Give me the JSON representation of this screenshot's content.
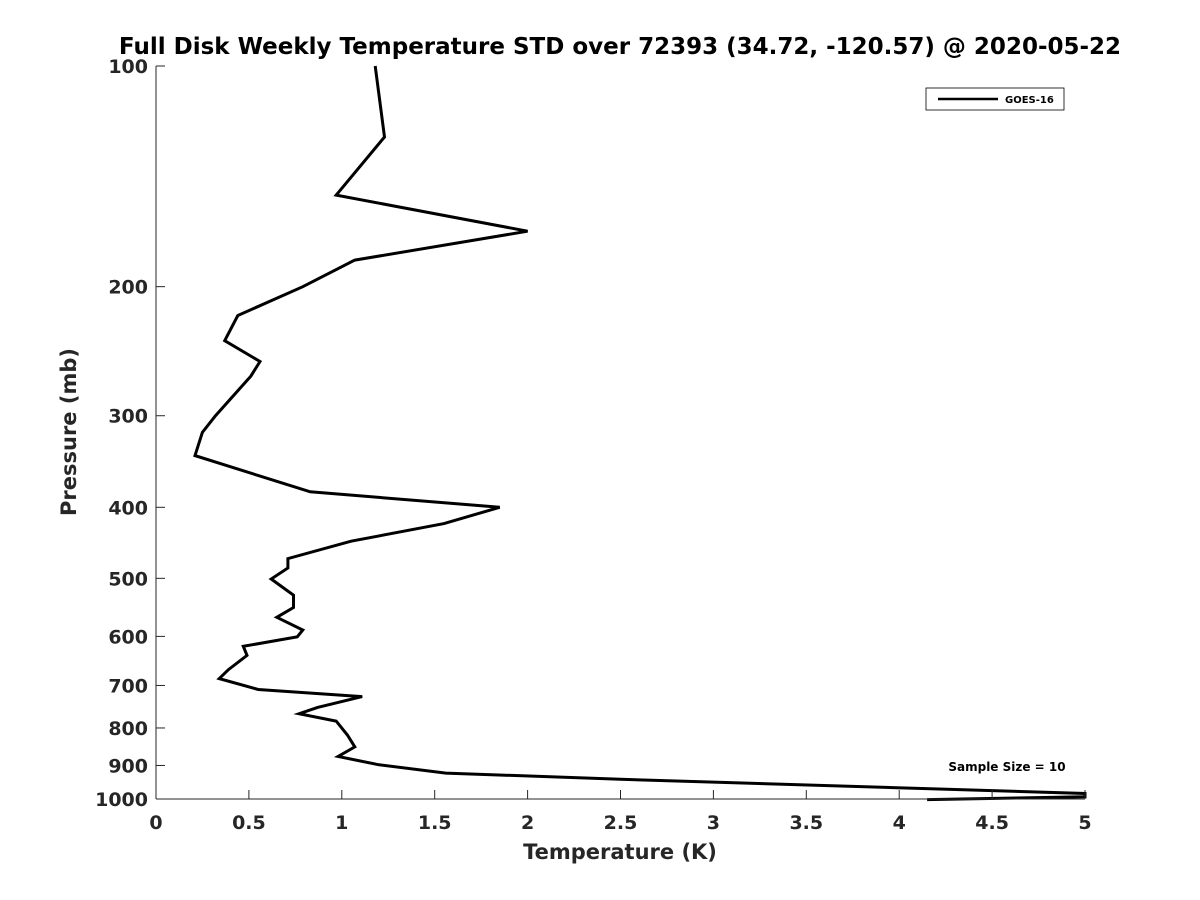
{
  "chart_data": {
    "type": "line",
    "title": "Full Disk Weekly Temperature STD over 72393 (34.72, -120.57) @ 2020-05-22",
    "xlabel": "Temperature (K)",
    "ylabel": "Pressure (mb)",
    "xlim": [
      0,
      5
    ],
    "ylim": [
      100,
      1000
    ],
    "y_scale": "log",
    "y_reversed": true,
    "grid": false,
    "x_ticks": [
      0,
      0.5,
      1,
      1.5,
      2,
      2.5,
      3,
      3.5,
      4,
      4.5,
      5
    ],
    "x_tick_labels": [
      "0",
      "0.5",
      "1",
      "1.5",
      "2",
      "2.5",
      "3",
      "3.5",
      "4",
      "4.5",
      "5"
    ],
    "y_ticks": [
      100,
      200,
      300,
      400,
      500,
      600,
      700,
      800,
      900,
      1000
    ],
    "y_tick_labels": [
      "100",
      "200",
      "300",
      "400",
      "500",
      "600",
      "700",
      "800",
      "900",
      "1000"
    ],
    "legend": {
      "placement": "top-right",
      "entries": [
        "GOES-16"
      ]
    },
    "annotation": "Sample Size = 10",
    "series": [
      {
        "name": "GOES-16",
        "color": "#000000",
        "points": [
          [
            1.18,
            100
          ],
          [
            1.23,
            125
          ],
          [
            0.97,
            150
          ],
          [
            2.0,
            168
          ],
          [
            1.07,
            184
          ],
          [
            0.79,
            200
          ],
          [
            0.44,
            219
          ],
          [
            0.37,
            237
          ],
          [
            0.56,
            253
          ],
          [
            0.51,
            265
          ],
          [
            0.32,
            300
          ],
          [
            0.25,
            316
          ],
          [
            0.21,
            340
          ],
          [
            0.83,
            381
          ],
          [
            1.85,
            400
          ],
          [
            1.55,
            421
          ],
          [
            1.05,
            445
          ],
          [
            0.71,
            470
          ],
          [
            0.71,
            484
          ],
          [
            0.62,
            501
          ],
          [
            0.74,
            527
          ],
          [
            0.74,
            548
          ],
          [
            0.65,
            565
          ],
          [
            0.79,
            588
          ],
          [
            0.76,
            601
          ],
          [
            0.47,
            619
          ],
          [
            0.49,
            637
          ],
          [
            0.39,
            666
          ],
          [
            0.34,
            685
          ],
          [
            0.55,
            709
          ],
          [
            1.11,
            725
          ],
          [
            0.87,
            750
          ],
          [
            0.77,
            765
          ],
          [
            0.97,
            783
          ],
          [
            1.03,
            818
          ],
          [
            1.07,
            849
          ],
          [
            0.98,
            875
          ],
          [
            1.2,
            898
          ],
          [
            1.56,
            922
          ],
          [
            2.5,
            940
          ],
          [
            5.0,
            983
          ],
          [
            5.0,
            993
          ],
          [
            4.15,
            1002
          ]
        ]
      }
    ]
  }
}
